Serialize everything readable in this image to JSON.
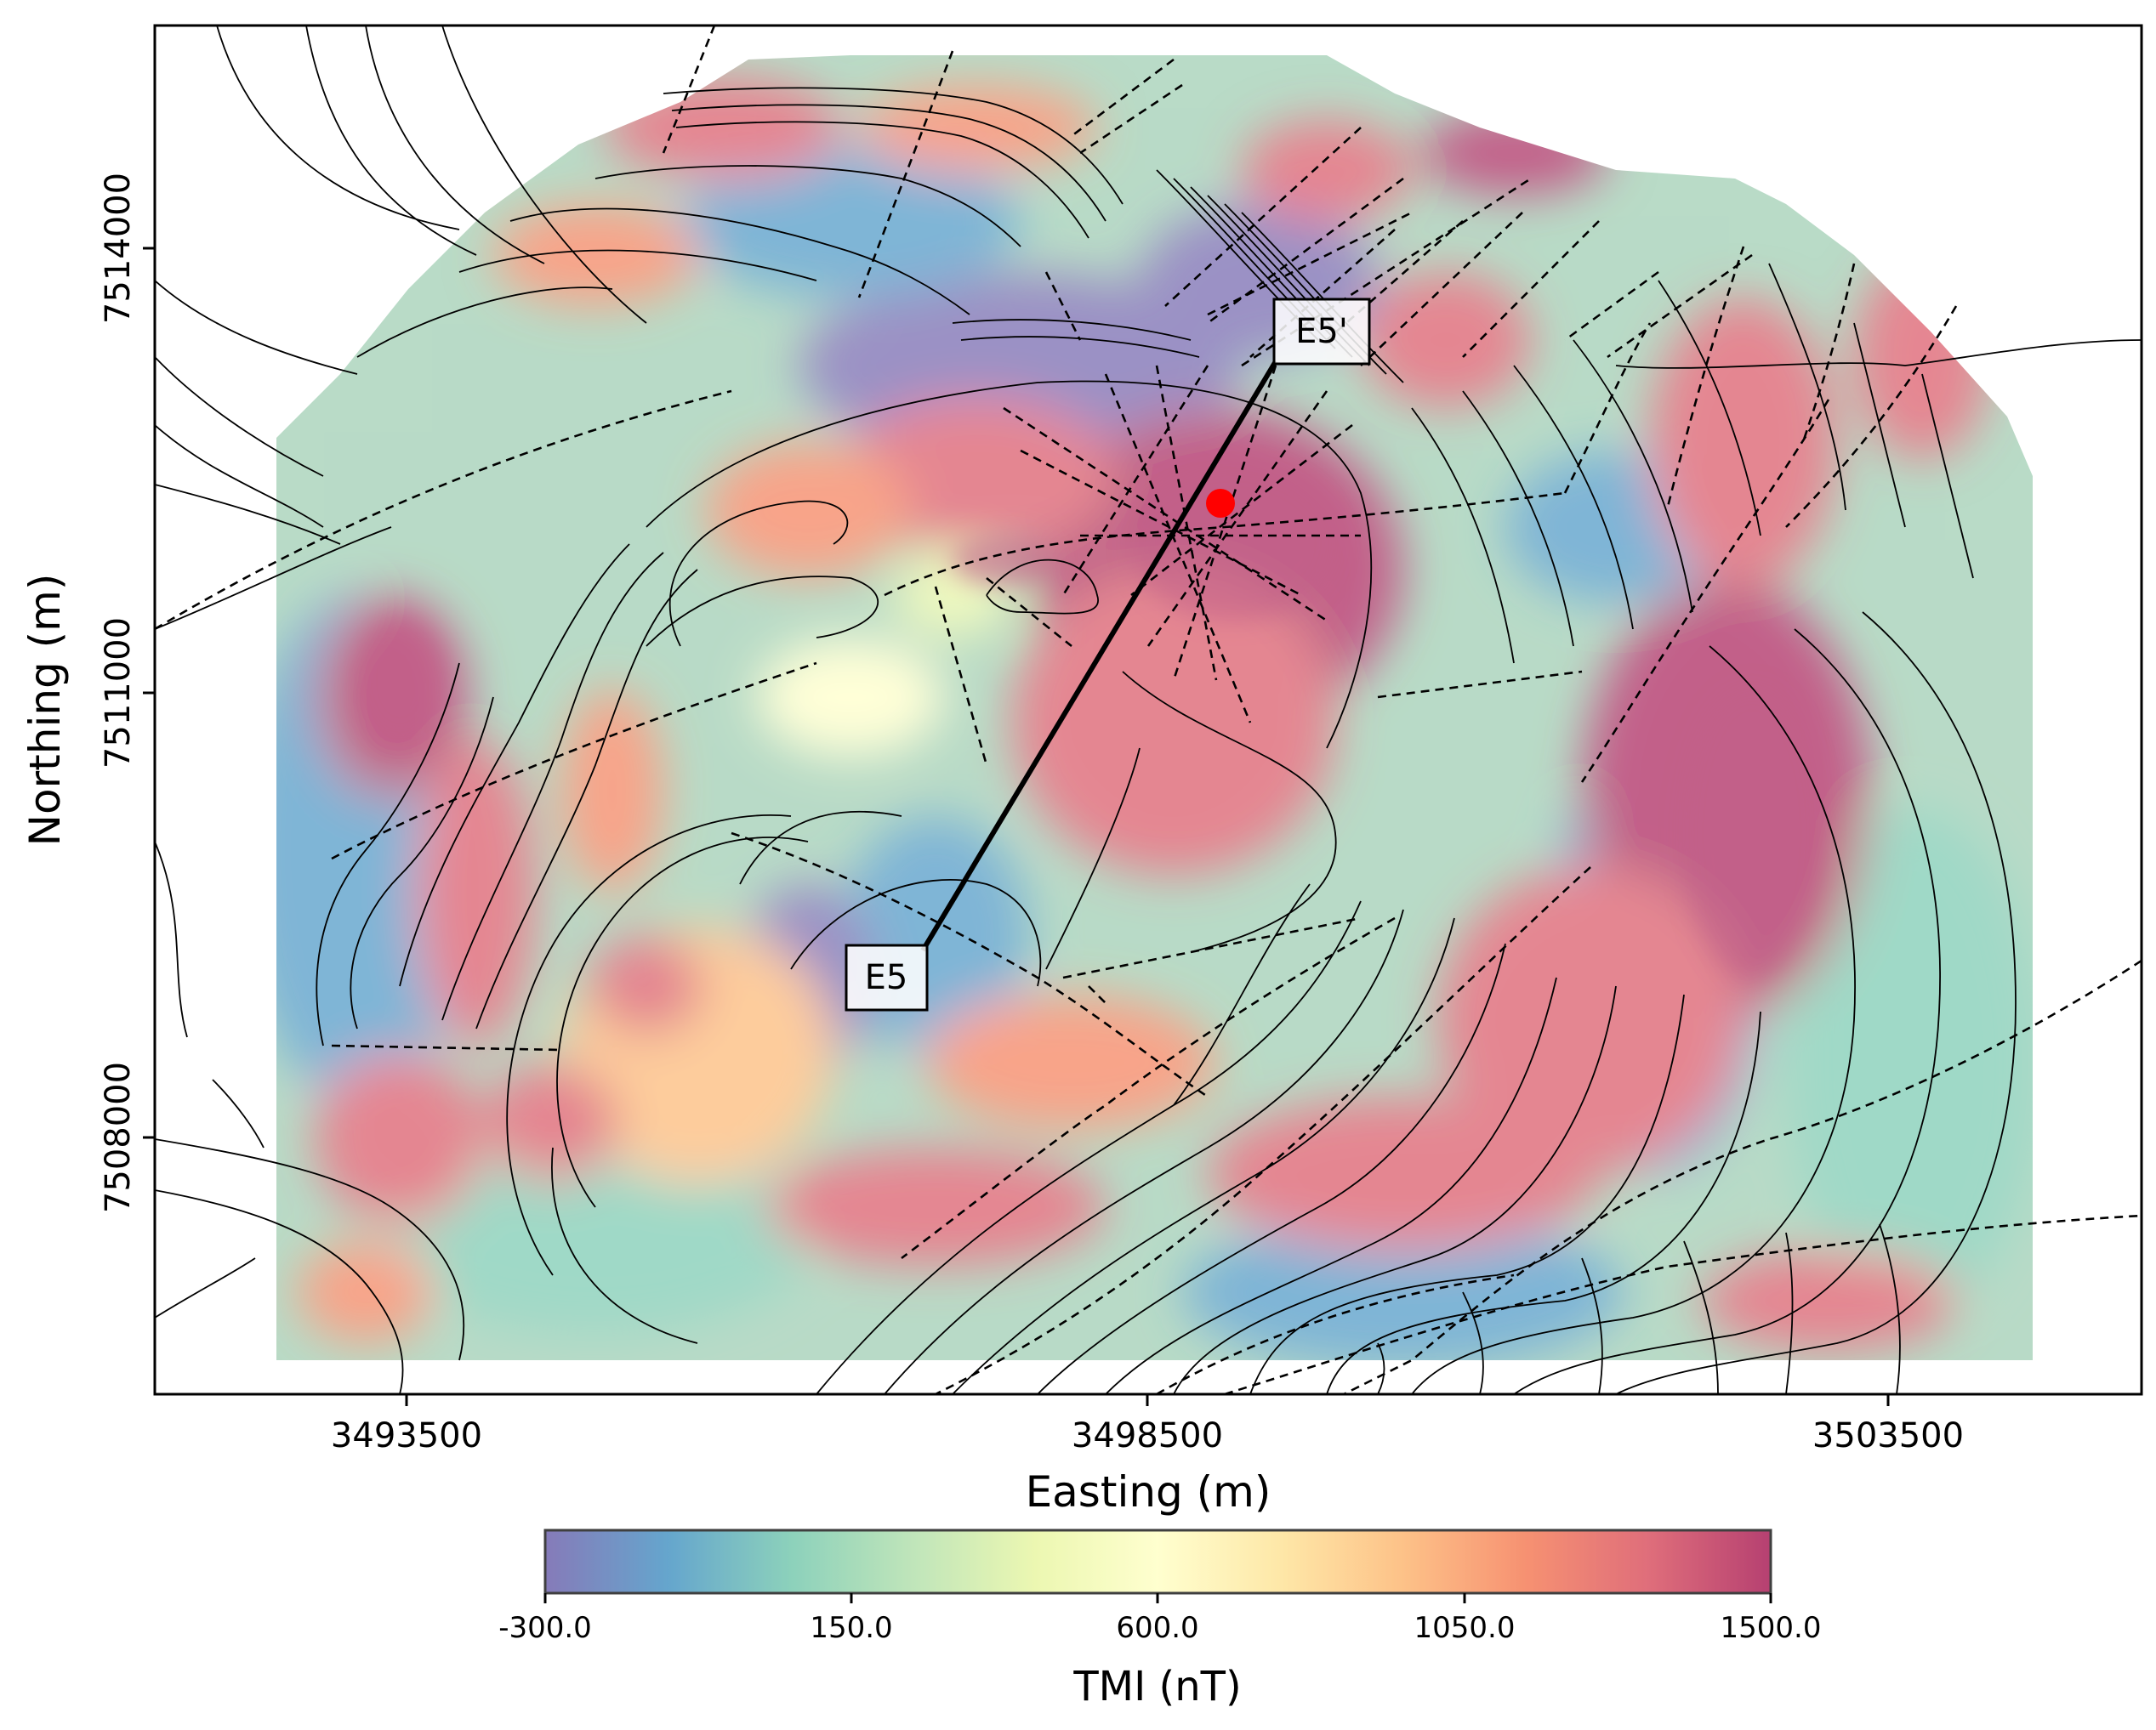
{
  "map": {
    "xlabel": "Easting (m)",
    "ylabel": "Northing (m)",
    "x_ticks": [
      "3493500",
      "3498500",
      "3503500"
    ],
    "y_ticks": [
      "7514000",
      "7511000",
      "7508000"
    ],
    "section_start_label": "E5",
    "section_end_label": "E5'",
    "point_marker_color": "#ff0000",
    "section_line_color": "#000000"
  },
  "colorbar": {
    "title": "TMI (nT)",
    "colormap": "Spectral_r",
    "range": [
      -300,
      1500
    ],
    "ticks": [
      "-300.0",
      "150.0",
      "600.0",
      "1050.0",
      "1500.0"
    ],
    "colors": [
      "#5e4fa2",
      "#3288bd",
      "#66c2a5",
      "#abdda4",
      "#e6f598",
      "#ffffbf",
      "#fee08b",
      "#fdae61",
      "#f46d43",
      "#d53e4f",
      "#9e0142"
    ]
  }
}
